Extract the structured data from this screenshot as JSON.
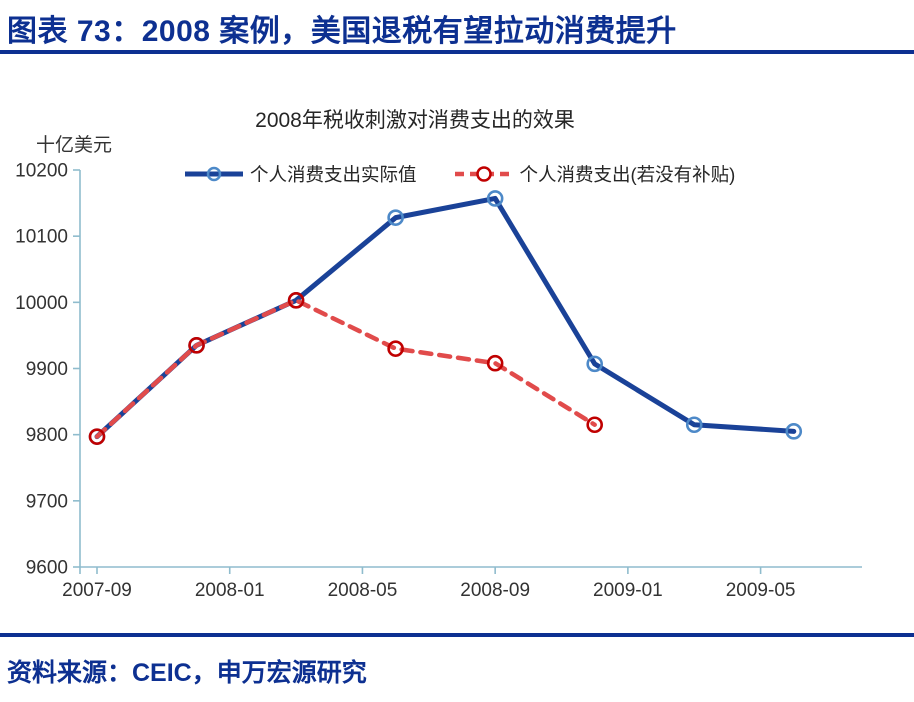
{
  "header": {
    "title": "图表 73：2008 案例，美国退税有望拉动消费提升"
  },
  "chart": {
    "title": "2008年税收刺激对消费支出的效果",
    "y_unit": "十亿美元"
  },
  "chart_data": {
    "type": "line",
    "title": "2008年税收刺激对消费支出的效果",
    "xlabel": "",
    "ylabel": "十亿美元",
    "ylim": [
      9600,
      10200
    ],
    "y_ticks": [
      9600,
      9700,
      9800,
      9900,
      10000,
      10100,
      10200
    ],
    "x_tick_labels": [
      "2007-09",
      "2008-01",
      "2008-05",
      "2008-09",
      "2009-01",
      "2009-05"
    ],
    "x_tick_months": [
      0,
      4,
      8,
      12,
      16,
      20
    ],
    "grid": "off",
    "legend_position": "top",
    "axis_color": "#8fbccd",
    "series": [
      {
        "name": "个人消费支出实际值",
        "style": "solid",
        "color": "#1a4298",
        "marker": "open-circle",
        "marker_color": "#4d89c8",
        "x": [
          "2007-09",
          "2007-12",
          "2008-03",
          "2008-06",
          "2008-09",
          "2008-12",
          "2009-03",
          "2009-06"
        ],
        "months": [
          0,
          3,
          6,
          9,
          12,
          15,
          18,
          21
        ],
        "values": [
          9797,
          9935,
          10003,
          10128,
          10157,
          9907,
          9815,
          9805
        ]
      },
      {
        "name": "个人消费支出(若没有补贴)",
        "style": "dashed",
        "color": "#e14b4b",
        "marker": "open-circle",
        "marker_color": "#c00000",
        "x": [
          "2007-09",
          "2007-12",
          "2008-03",
          "2008-06",
          "2008-09",
          "2008-12"
        ],
        "months": [
          0,
          3,
          6,
          9,
          12,
          15
        ],
        "values": [
          9797,
          9935,
          10003,
          9930,
          9908,
          9815
        ]
      }
    ]
  },
  "footer": {
    "source": "资料来源：CEIC，申万宏源研究"
  },
  "colors": {
    "accent_navy": "#0d3091",
    "series_actual_blue": "#1a4298",
    "series_counterfactual_red": "#e14b4b",
    "axis_light_blue": "#8fbccd"
  }
}
